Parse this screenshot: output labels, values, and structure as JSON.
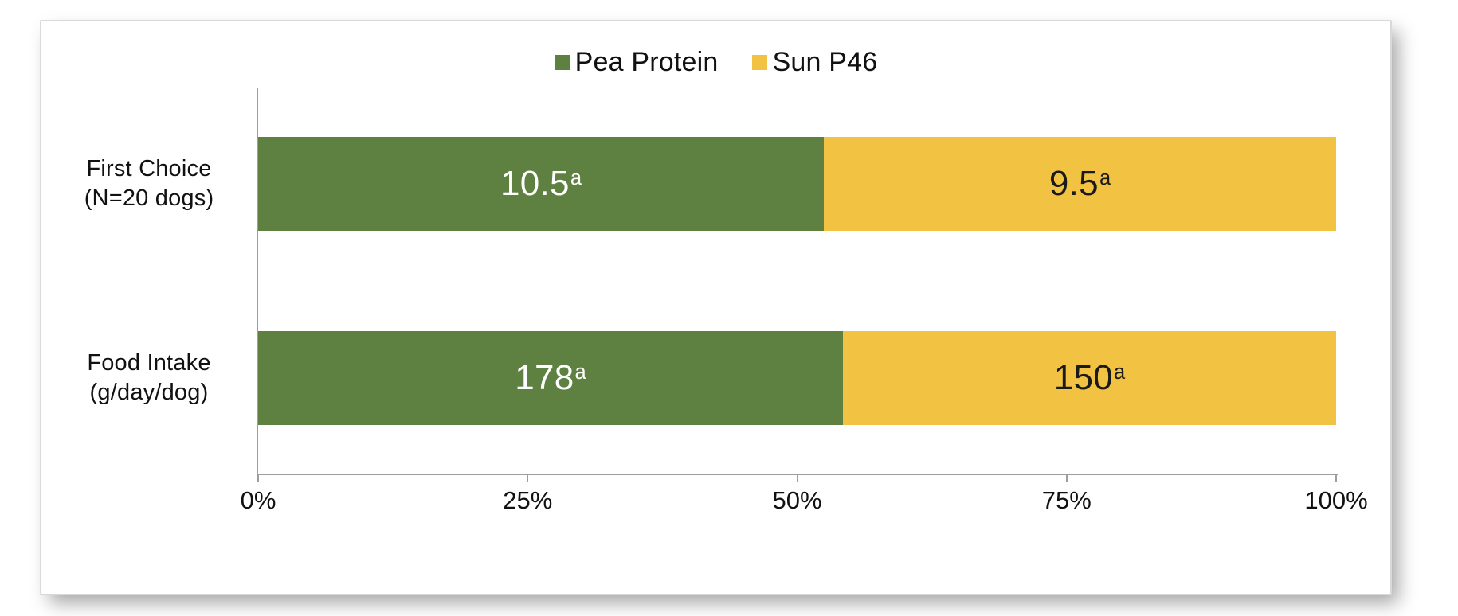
{
  "chart_data": {
    "type": "bar",
    "subtype": "horizontal-100-percent-stacked",
    "title": "",
    "xlabel": "",
    "ylabel": "",
    "gridlines": false,
    "legend_position": "top",
    "categories": [
      "First Choice (N=20 dogs)",
      "Food Intake (g/day/dog)"
    ],
    "category_lines": [
      {
        "line1": "First Choice",
        "line2": "(N=20 dogs)"
      },
      {
        "line1": "Food Intake",
        "line2": "(g/day/dog)"
      }
    ],
    "series": [
      {
        "name": "Pea Protein",
        "color": "#5E8142",
        "label_color": "#FFFFFF",
        "values": [
          10.5,
          178
        ]
      },
      {
        "name": "Sun P46",
        "color": "#F2C342",
        "label_color": "#1A1A1A",
        "values": [
          9.5,
          150
        ]
      }
    ],
    "data_labels": [
      [
        {
          "text": "10.5",
          "sup": "a"
        },
        {
          "text": "9.5",
          "sup": "a"
        }
      ],
      [
        {
          "text": "178",
          "sup": "a"
        },
        {
          "text": "150",
          "sup": "a"
        }
      ]
    ],
    "x_axis": {
      "min": 0,
      "max": 100,
      "tick_values": [
        0,
        25,
        50,
        75,
        100
      ],
      "ticks": [
        "0%",
        "25%",
        "50%",
        "75%",
        "100%"
      ]
    }
  },
  "legend": {
    "items": [
      {
        "label": "Pea Protein",
        "color": "#5E8142"
      },
      {
        "label": "Sun P46",
        "color": "#F2C342"
      }
    ]
  },
  "colors": {
    "axis": "#9E9E9E",
    "text": "#111111",
    "card_border": "#D9D9D9",
    "background": "#FFFFFF"
  }
}
